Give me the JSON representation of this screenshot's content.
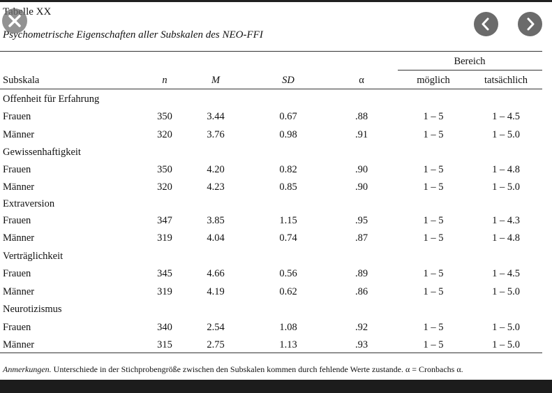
{
  "table": {
    "title": "Tabelle XX",
    "subtitle": "Psychometrische Eigenschaften aller Subskalen des NEO-FFI",
    "header": {
      "group_label": "Bereich",
      "subskala": "Subskala",
      "n": "n",
      "m": "M",
      "sd": "SD",
      "alpha": "α",
      "moeglich": "möglich",
      "tatsaechlich": "tatsächlich"
    },
    "groups": [
      {
        "name": "Offenheit für Erfahrung",
        "rows": [
          {
            "label": "Frauen",
            "n": "350",
            "m": "3.44",
            "sd": "0.67",
            "alpha": ".88",
            "moeglich": "1 – 5",
            "tatsaechlich": "1 – 4.5"
          },
          {
            "label": "Männer",
            "n": "320",
            "m": "3.76",
            "sd": "0.98",
            "alpha": ".91",
            "moeglich": "1 – 5",
            "tatsaechlich": "1 – 5.0"
          }
        ]
      },
      {
        "name": "Gewissenhaftigkeit",
        "rows": [
          {
            "label": "Frauen",
            "n": "350",
            "m": "4.20",
            "sd": "0.82",
            "alpha": ".90",
            "moeglich": "1 – 5",
            "tatsaechlich": "1 – 4.8"
          },
          {
            "label": "Männer",
            "n": "320",
            "m": "4.23",
            "sd": "0.85",
            "alpha": ".90",
            "moeglich": "1 – 5",
            "tatsaechlich": "1 – 5.0"
          }
        ]
      },
      {
        "name": "Extraversion",
        "rows": [
          {
            "label": "Frauen",
            "n": "347",
            "m": "3.85",
            "sd": "1.15",
            "alpha": ".95",
            "moeglich": "1 – 5",
            "tatsaechlich": "1 – 4.3"
          },
          {
            "label": "Männer",
            "n": "319",
            "m": "4.04",
            "sd": "0.74",
            "alpha": ".87",
            "moeglich": "1 – 5",
            "tatsaechlich": "1 – 4.8"
          }
        ]
      },
      {
        "name": "Verträglichkeit",
        "rows": [
          {
            "label": "Frauen",
            "n": "345",
            "m": "4.66",
            "sd": "0.56",
            "alpha": ".89",
            "moeglich": "1 – 5",
            "tatsaechlich": "1 – 4.5"
          },
          {
            "label": "Männer",
            "n": "319",
            "m": "4.19",
            "sd": "0.62",
            "alpha": ".86",
            "moeglich": "1 – 5",
            "tatsaechlich": "1 – 5.0"
          }
        ]
      },
      {
        "name": "Neurotizismus",
        "rows": [
          {
            "label": "Frauen",
            "n": "340",
            "m": "2.54",
            "sd": "1.08",
            "alpha": ".92",
            "moeglich": "1 – 5",
            "tatsaechlich": "1 – 5.0"
          },
          {
            "label": "Männer",
            "n": "315",
            "m": "2.75",
            "sd": "1.13",
            "alpha": ".93",
            "moeglich": "1 – 5",
            "tatsaechlich": "1 – 5.0"
          }
        ]
      }
    ],
    "note_lead": "Anmerkungen.",
    "note_text": " Unterschiede in der Stichprobengröße zwischen den Subskalen kommen durch fehlende Werte zustande. α = Cronbachs α."
  },
  "viewer": {
    "close_icon": "close-icon",
    "prev_icon": "chevron-left-icon",
    "next_icon": "chevron-right-icon"
  }
}
